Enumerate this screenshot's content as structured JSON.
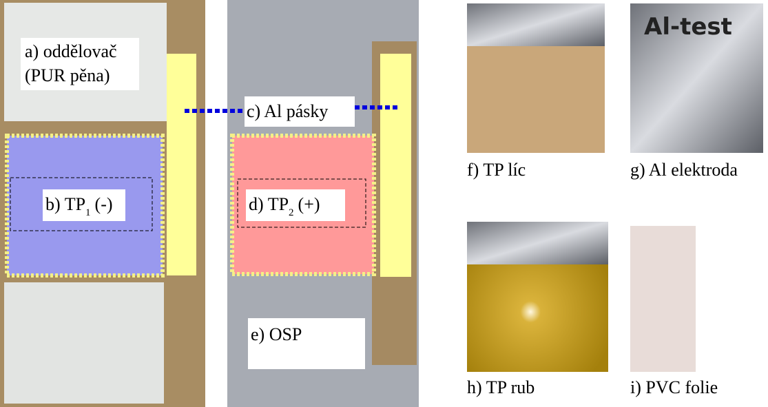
{
  "panels": {
    "separator": "a) oddělovač",
    "separator_note": "(PUR pěna)",
    "tp1": {
      "label": "b) TP",
      "sub": "1",
      "sign": "(-)"
    },
    "tapes": "c) Al pásky",
    "tp2": {
      "label": "d) TP",
      "sub": "2",
      "sign": "(+)"
    },
    "osp": "e) OSP"
  },
  "photos": [
    {
      "label": "f) TP líc"
    },
    {
      "label": "g) Al elektroda",
      "written": "Al-test"
    },
    {
      "label": "h) TP rub"
    },
    {
      "label": "i) PVC folie"
    }
  ]
}
